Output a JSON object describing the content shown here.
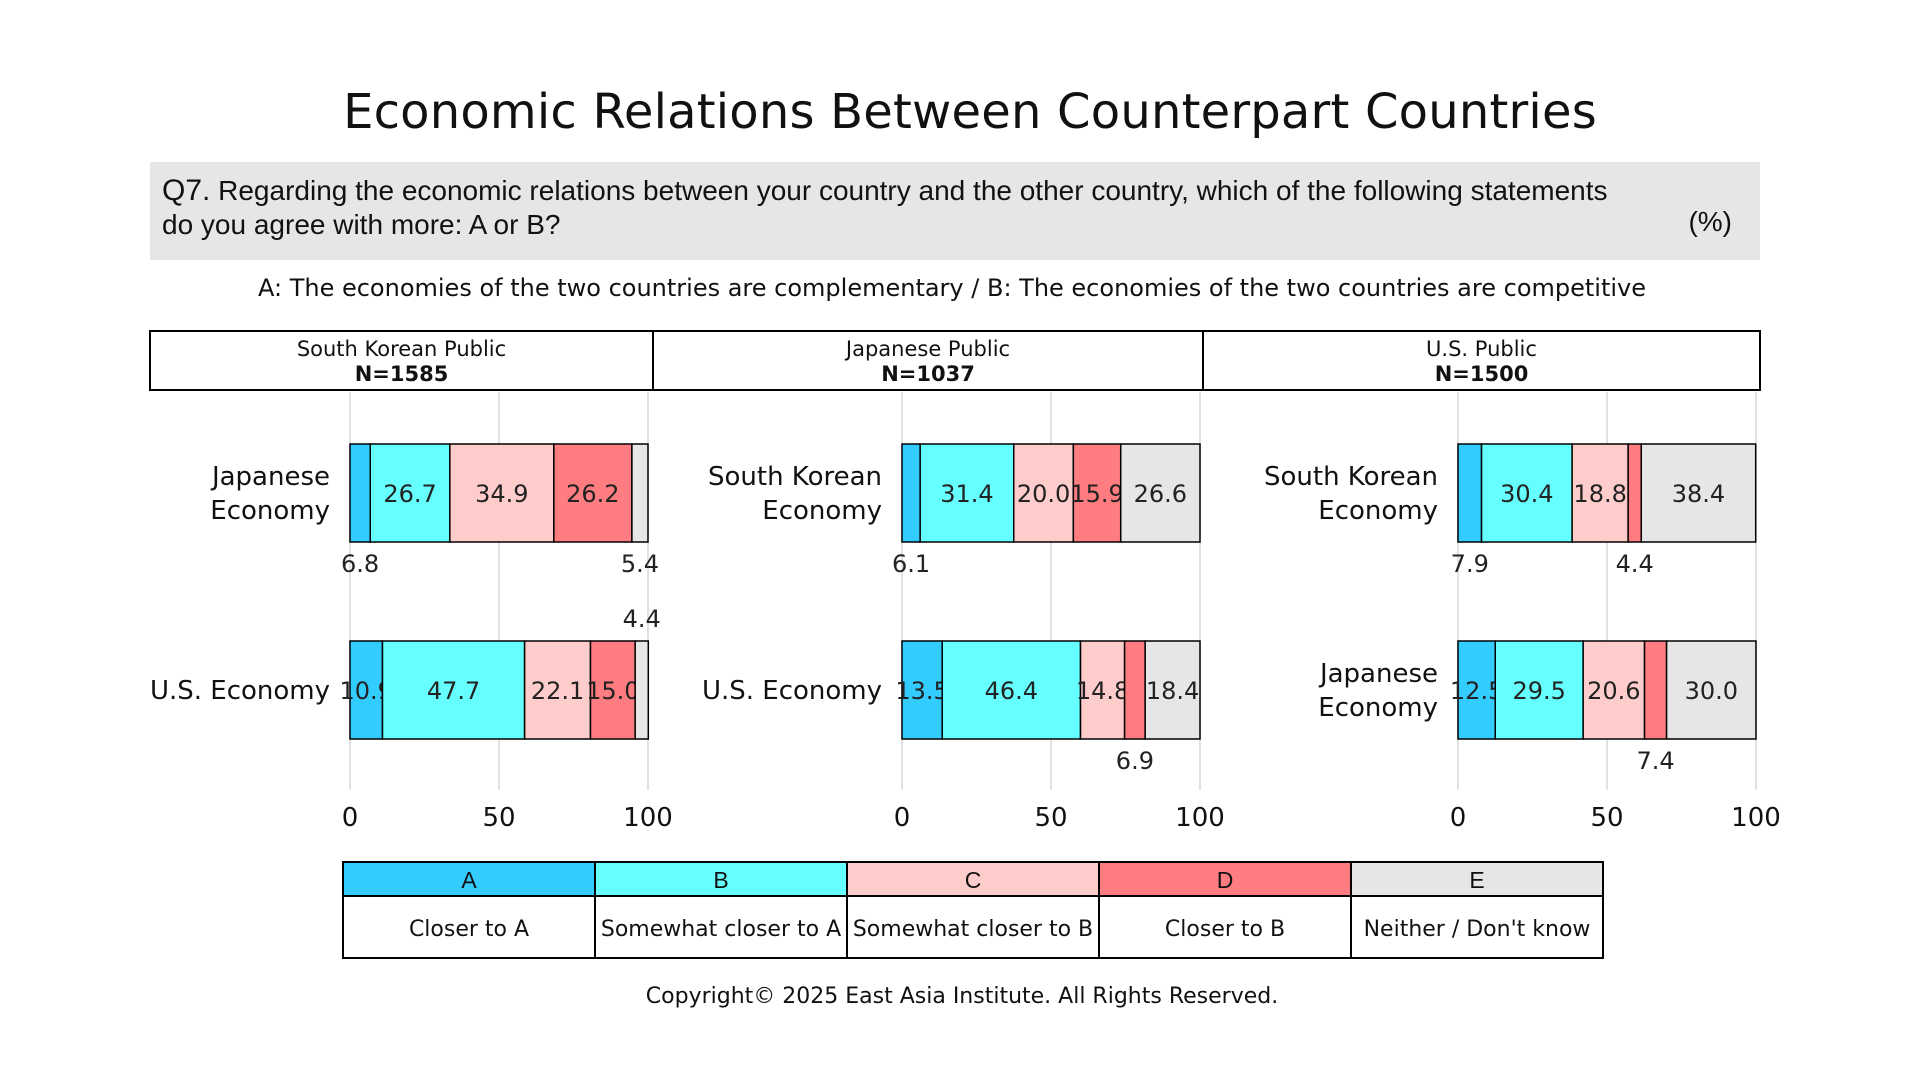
{
  "title": "Economic Relations Between Counterpart Countries",
  "question": {
    "label": "Q7.",
    "text": "Regarding the economic relations between your country and the other country, which of the following statements do you agree with more: A or B?",
    "unit": "(%)"
  },
  "ab_statement": "A: The economies of the two countries are complementary / B: The economies of the two countries are competitive",
  "footer": "Copyright© 2025 East Asia Institute. All Rights Reserved.",
  "colors": {
    "A": "#33ccff",
    "B": "#66ffff",
    "C": "#ffcccc",
    "D": "#ff7c80",
    "E": "#e6e6e6"
  },
  "chart_data": {
    "type": "bar",
    "orientation": "horizontal-stacked",
    "xlim": [
      0,
      100
    ],
    "xticks": [
      0,
      50,
      100
    ],
    "legend": [
      {
        "key": "A",
        "label": "Closer to A"
      },
      {
        "key": "B",
        "label": "Somewhat closer to A"
      },
      {
        "key": "C",
        "label": "Somewhat closer to B"
      },
      {
        "key": "D",
        "label": "Closer to B"
      },
      {
        "key": "E",
        "label": "Neither / Don't know"
      }
    ],
    "panels": [
      {
        "public": "South Korean Public",
        "n": "N=1585",
        "rows": [
          {
            "label": "Japanese Economy",
            "values": [
              6.8,
              26.7,
              34.9,
              26.2,
              5.4
            ]
          },
          {
            "label": "U.S. Economy",
            "values": [
              10.9,
              47.7,
              22.1,
              15.0,
              4.4
            ]
          }
        ]
      },
      {
        "public": "Japanese Public",
        "n": "N=1037",
        "rows": [
          {
            "label": "South Korean Economy",
            "values": [
              6.1,
              31.4,
              20.0,
              15.9,
              26.6
            ]
          },
          {
            "label": "U.S. Economy",
            "values": [
              13.5,
              46.4,
              14.8,
              6.9,
              18.4
            ]
          }
        ]
      },
      {
        "public": "U.S. Public",
        "n": "N=1500",
        "rows": [
          {
            "label": "South Korean Economy",
            "values": [
              7.9,
              30.4,
              18.8,
              4.4,
              38.4
            ]
          },
          {
            "label": "Japanese Economy",
            "values": [
              12.5,
              29.5,
              20.6,
              7.4,
              30.0
            ]
          }
        ]
      }
    ]
  }
}
